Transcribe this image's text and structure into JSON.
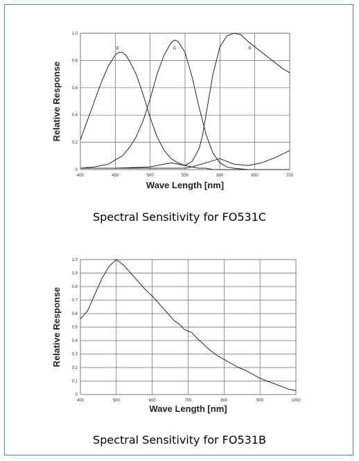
{
  "chart_data": [
    {
      "id": "fo531c",
      "type": "line",
      "caption": "Spectral Sensitivity for FO531C",
      "xlabel": "Wave Length [nm]",
      "ylabel": "Relative Response",
      "xlim": [
        400,
        700
      ],
      "ylim": [
        0,
        1.0
      ],
      "xticks": [
        400,
        450,
        500,
        550,
        600,
        650,
        700
      ],
      "yticks": [
        0,
        0.2,
        0.4,
        0.6,
        0.8,
        1.0
      ],
      "xtick_labels": [
        "400",
        "450",
        "500",
        "550",
        "600",
        "650",
        "700"
      ],
      "ytick_labels": [
        "0",
        "0.2",
        "0.4",
        "0.6",
        "0.8",
        "1.0"
      ],
      "grid": true,
      "series": [
        {
          "name": "B",
          "label_at": [
            453,
            0.88
          ],
          "x": [
            400,
            410,
            420,
            430,
            440,
            450,
            455,
            460,
            465,
            470,
            480,
            490,
            500,
            510,
            520,
            530,
            540,
            550,
            560,
            570,
            580,
            590,
            600,
            620,
            650,
            700
          ],
          "y": [
            0.22,
            0.36,
            0.5,
            0.64,
            0.76,
            0.84,
            0.86,
            0.86,
            0.84,
            0.8,
            0.7,
            0.55,
            0.38,
            0.24,
            0.14,
            0.08,
            0.05,
            0.03,
            0.02,
            0.01,
            0.01,
            0.0,
            0.0,
            0.0,
            0.0,
            0.0
          ]
        },
        {
          "name": "G",
          "label_at": [
            535,
            0.88
          ],
          "x": [
            400,
            420,
            440,
            460,
            470,
            480,
            490,
            500,
            510,
            520,
            530,
            535,
            540,
            550,
            560,
            570,
            580,
            590,
            600,
            610,
            620,
            640,
            660,
            680,
            700
          ],
          "y": [
            0.01,
            0.02,
            0.04,
            0.1,
            0.16,
            0.24,
            0.36,
            0.52,
            0.7,
            0.84,
            0.93,
            0.95,
            0.94,
            0.86,
            0.68,
            0.46,
            0.26,
            0.12,
            0.05,
            0.02,
            0.01,
            0.0,
            0.0,
            0.0,
            0.0
          ]
        },
        {
          "name": "R",
          "label_at": [
            643,
            0.88
          ],
          "x": [
            400,
            450,
            500,
            520,
            530,
            540,
            550,
            560,
            570,
            575,
            580,
            590,
            600,
            610,
            620,
            630,
            640,
            650,
            660,
            670,
            680,
            690,
            700
          ],
          "y": [
            0.01,
            0.01,
            0.02,
            0.04,
            0.05,
            0.04,
            0.03,
            0.06,
            0.15,
            0.25,
            0.4,
            0.7,
            0.9,
            0.98,
            1.0,
            0.99,
            0.94,
            0.9,
            0.86,
            0.82,
            0.78,
            0.74,
            0.71
          ]
        },
        {
          "name": "",
          "x": [
            400,
            450,
            500,
            550,
            560,
            580,
            600,
            620,
            640,
            660,
            680,
            700
          ],
          "y": [
            0.01,
            0.01,
            0.01,
            0.01,
            0.02,
            0.05,
            0.08,
            0.04,
            0.03,
            0.05,
            0.09,
            0.14
          ]
        }
      ]
    },
    {
      "id": "fo531b",
      "type": "line",
      "caption": "Spectral Sensitivity for FO531B",
      "xlabel": "Wave Length [nm]",
      "ylabel": "Relative Response",
      "xlim": [
        400,
        1000
      ],
      "ylim": [
        0,
        1.0
      ],
      "xticks": [
        400,
        500,
        600,
        700,
        800,
        900,
        1000
      ],
      "yticks": [
        0,
        0.1,
        0.2,
        0.3,
        0.4,
        0.5,
        0.6,
        0.7,
        0.8,
        0.9,
        1.0
      ],
      "xtick_labels": [
        "400",
        "500",
        "600",
        "700",
        "800",
        "900",
        "1000"
      ],
      "ytick_labels": [
        "0",
        "0.1",
        "0.2",
        "0.3",
        "0.4",
        "0.5",
        "0.6",
        "0.7",
        "0.8",
        "0.9",
        "1.0"
      ],
      "grid": true,
      "series": [
        {
          "name": "",
          "x": [
            400,
            420,
            440,
            460,
            480,
            500,
            520,
            540,
            560,
            580,
            600,
            620,
            640,
            660,
            680,
            690,
            700,
            710,
            720,
            740,
            760,
            780,
            800,
            820,
            840,
            860,
            880,
            900,
            920,
            940,
            960,
            980,
            1000
          ],
          "y": [
            0.56,
            0.62,
            0.74,
            0.86,
            0.95,
            1.0,
            0.96,
            0.9,
            0.84,
            0.78,
            0.73,
            0.67,
            0.61,
            0.55,
            0.51,
            0.48,
            0.47,
            0.46,
            0.43,
            0.38,
            0.33,
            0.29,
            0.26,
            0.23,
            0.2,
            0.18,
            0.15,
            0.12,
            0.1,
            0.08,
            0.06,
            0.04,
            0.03
          ]
        }
      ]
    }
  ]
}
